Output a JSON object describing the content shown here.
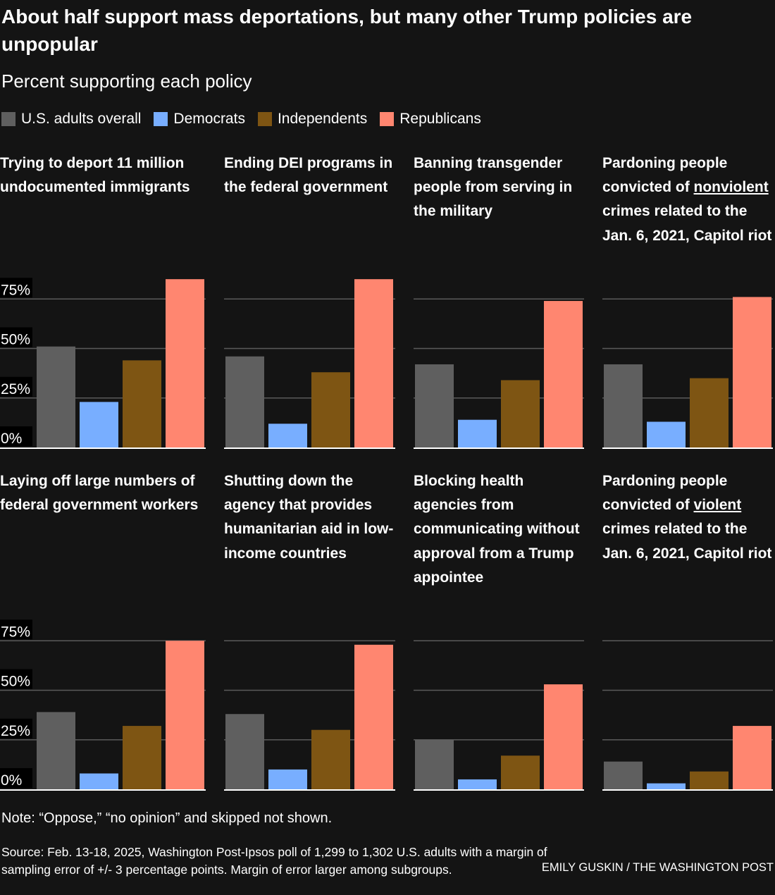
{
  "title": "About half support mass deportations, but many other Trump policies are unpopular",
  "subtitle": "Percent supporting each policy",
  "colors": {
    "overall": "#5f5f5f",
    "dem": "#78aeff",
    "ind": "#7e5513",
    "rep": "#ff8670"
  },
  "chart_data": {
    "type": "bar",
    "ylabel": "Percent supporting",
    "ylim": [
      0,
      85
    ],
    "yticks": [
      0,
      25,
      50,
      75
    ],
    "ytick_labels": [
      "0%",
      "25%",
      "50%",
      "75%"
    ],
    "legend": [
      "U.S. adults overall",
      "Democrats",
      "Independents",
      "Republicans"
    ],
    "legend_placement": "top",
    "panels": [
      {
        "title_parts": [
          "Trying to deport 11 million undocumented immigrants"
        ],
        "values": [
          51,
          23,
          44,
          85
        ]
      },
      {
        "title_parts": [
          "Ending DEI programs in the federal government"
        ],
        "values": [
          46,
          12,
          38,
          85
        ]
      },
      {
        "title_parts": [
          "Banning transgender people from serving in the military"
        ],
        "values": [
          42,
          14,
          34,
          74
        ]
      },
      {
        "title_parts": [
          "Pardoning people convicted of ",
          "nonviolent",
          " crimes related to the Jan. 6, 2021, Capitol riot"
        ],
        "values": [
          42,
          13,
          35,
          76
        ]
      },
      {
        "title_parts": [
          "Laying off large numbers of federal government workers"
        ],
        "values": [
          39,
          8,
          32,
          75
        ]
      },
      {
        "title_parts": [
          "Shutting down the agency that provides humanitarian aid in low-income countries"
        ],
        "values": [
          38,
          10,
          30,
          73
        ]
      },
      {
        "title_parts": [
          "Blocking health agencies from communicating without approval from a Trump appointee"
        ],
        "values": [
          25,
          5,
          17,
          53
        ]
      },
      {
        "title_parts": [
          "Pardoning people convicted of ",
          "violent",
          " crimes related to the Jan. 6, 2021, Capitol riot"
        ],
        "values": [
          14,
          3,
          9,
          32
        ]
      }
    ]
  },
  "note": "Note: “Oppose,” “no opinion” and skipped not shown.",
  "source": "Source: Feb. 13-18, 2025, Washington Post-Ipsos poll of 1,299 to 1,302 U.S. adults with a margin of sampling error of +/- 3 percentage points. Margin of error larger among subgroups.",
  "credit": "EMILY GUSKIN / THE WASHINGTON POST"
}
